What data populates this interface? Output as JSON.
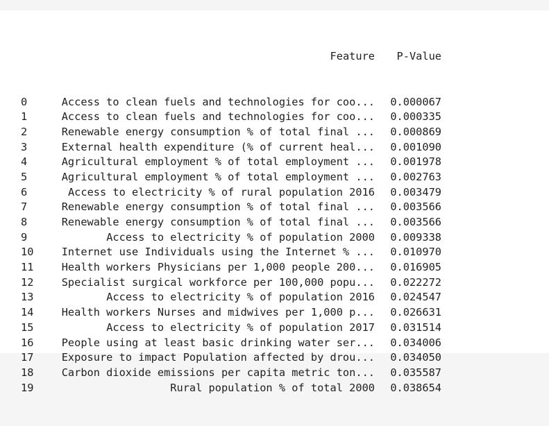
{
  "table": {
    "columns": {
      "feature": "Feature",
      "pvalue": "P-Value"
    },
    "rows": [
      {
        "index": "0",
        "feature": "Access to clean fuels and technologies for coo...",
        "pvalue": "0.000067"
      },
      {
        "index": "1",
        "feature": "Access to clean fuels and technologies for coo...",
        "pvalue": "0.000335"
      },
      {
        "index": "2",
        "feature": "Renewable energy consumption % of total final ...",
        "pvalue": "0.000869"
      },
      {
        "index": "3",
        "feature": "External health expenditure (% of current heal...",
        "pvalue": "0.001090"
      },
      {
        "index": "4",
        "feature": "Agricultural employment % of total employment ...",
        "pvalue": "0.001978"
      },
      {
        "index": "5",
        "feature": "Agricultural employment % of total employment ...",
        "pvalue": "0.002763"
      },
      {
        "index": "6",
        "feature": "Access to electricity % of rural population 2016",
        "pvalue": "0.003479"
      },
      {
        "index": "7",
        "feature": "Renewable energy consumption % of total final ...",
        "pvalue": "0.003566"
      },
      {
        "index": "8",
        "feature": "Renewable energy consumption % of total final ...",
        "pvalue": "0.003566"
      },
      {
        "index": "9",
        "feature": "Access to electricity % of population 2000",
        "pvalue": "0.009338"
      },
      {
        "index": "10",
        "feature": "Internet use Individuals using the Internet % ...",
        "pvalue": "0.010970"
      },
      {
        "index": "11",
        "feature": "Health workers Physicians per 1,000 people 200...",
        "pvalue": "0.016905"
      },
      {
        "index": "12",
        "feature": "Specialist surgical workforce per 100,000 popu...",
        "pvalue": "0.022272"
      },
      {
        "index": "13",
        "feature": "Access to electricity % of population 2016",
        "pvalue": "0.024547"
      },
      {
        "index": "14",
        "feature": "Health workers Nurses and midwives per 1,000 p...",
        "pvalue": "0.026631"
      },
      {
        "index": "15",
        "feature": "Access to electricity % of population 2017",
        "pvalue": "0.031514"
      },
      {
        "index": "16",
        "feature": "People using at least basic drinking water ser...",
        "pvalue": "0.034006"
      },
      {
        "index": "17",
        "feature": "Exposure to impact Population affected by drou...",
        "pvalue": "0.034050"
      },
      {
        "index": "18",
        "feature": "Carbon dioxide emissions per capita metric ton...",
        "pvalue": "0.035587"
      },
      {
        "index": "19",
        "feature": "Rural population % of total 2000",
        "pvalue": "0.038654"
      }
    ]
  }
}
